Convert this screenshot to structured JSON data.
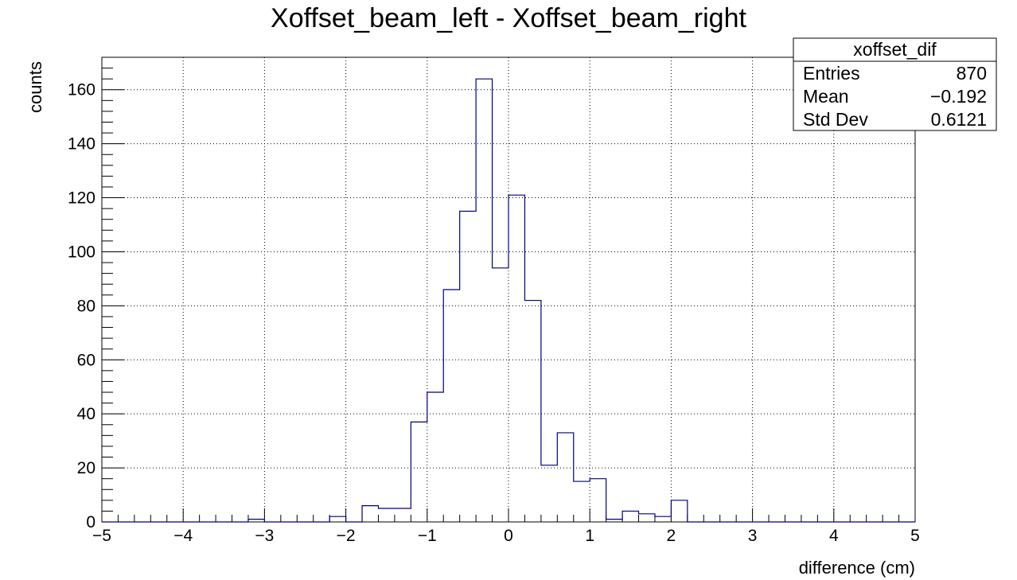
{
  "chart_data": {
    "type": "bar",
    "title": "Xoffset_beam_left - Xoffset_beam_right",
    "xlabel": "difference (cm)",
    "ylabel": "counts",
    "xlim": [
      -5,
      5
    ],
    "ylim": [
      0,
      172
    ],
    "x_ticks": [
      -5,
      -4,
      -3,
      -2,
      -1,
      0,
      1,
      2,
      3,
      4,
      5
    ],
    "x_tick_labels": [
      "−5",
      "−4",
      "−3",
      "−2",
      "−1",
      "0",
      "1",
      "2",
      "3",
      "4",
      "5"
    ],
    "y_ticks": [
      0,
      20,
      40,
      60,
      80,
      100,
      120,
      140,
      160
    ],
    "y_tick_labels": [
      "0",
      "20",
      "40",
      "60",
      "80",
      "100",
      "120",
      "140",
      "160"
    ],
    "grid": true,
    "bin_edges": [
      -5.0,
      -4.8,
      -4.6,
      -4.4,
      -4.2,
      -4.0,
      -3.8,
      -3.6,
      -3.4,
      -3.2,
      -3.0,
      -2.8,
      -2.6,
      -2.4,
      -2.2,
      -2.0,
      -1.8,
      -1.6,
      -1.4,
      -1.2,
      -1.0,
      -0.8,
      -0.6,
      -0.4,
      -0.2,
      0.0,
      0.2,
      0.4,
      0.6,
      0.8,
      1.0,
      1.2,
      1.4,
      1.6,
      1.8,
      2.0,
      2.2,
      2.4,
      2.6,
      2.8,
      3.0,
      3.2,
      3.4,
      3.6,
      3.8,
      4.0,
      4.2,
      4.4,
      4.6,
      4.8,
      5.0
    ],
    "values": [
      0,
      0,
      0,
      0,
      0,
      0,
      0,
      0,
      0,
      1,
      0,
      0,
      0,
      0,
      2,
      0,
      6,
      5,
      5,
      37,
      48,
      86,
      115,
      164,
      94,
      121,
      82,
      21,
      33,
      15,
      16,
      1,
      4,
      3,
      2,
      8,
      0,
      0,
      0,
      0,
      0,
      0,
      0,
      0,
      0,
      0,
      0,
      0,
      0,
      0
    ],
    "line_color": "#000080",
    "stats_box": {
      "title": "xoffset_dif",
      "rows": [
        {
          "label": "Entries",
          "value": "870"
        },
        {
          "label": "Mean",
          "value": "−0.192"
        },
        {
          "label": "Std Dev",
          "value": "0.6121"
        }
      ],
      "position": "top-right"
    }
  }
}
